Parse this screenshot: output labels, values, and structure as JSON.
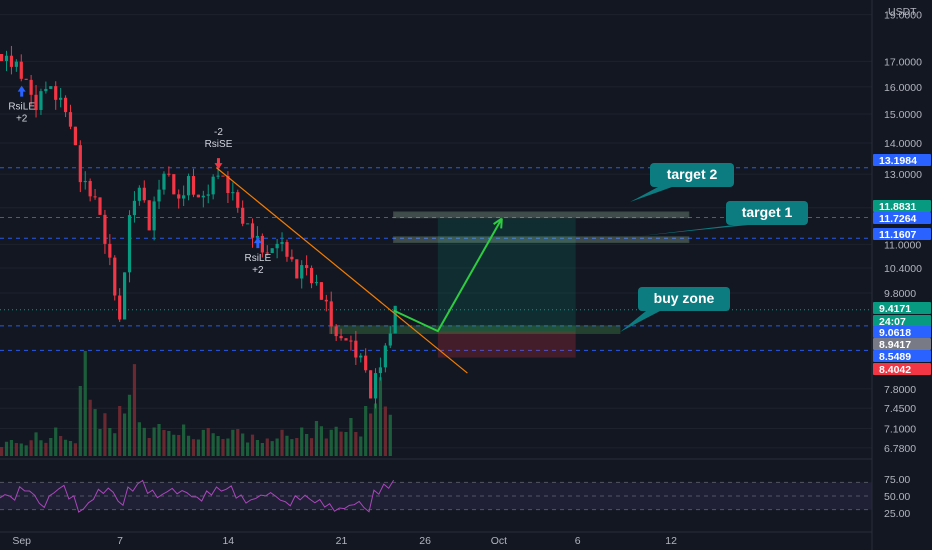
{
  "chart_data": {
    "type": "candlestick",
    "currency": "USDT",
    "price_axis": {
      "ticks": [
        "19.0000",
        "17.0000",
        "16.0000",
        "15.0000",
        "14.0000",
        "13.0000",
        "12.0000",
        "11.0000",
        "10.4000",
        "9.8000",
        "7.8000",
        "7.4500",
        "7.1000",
        "6.7800"
      ],
      "scale": "log",
      "range": [
        6.65,
        19.3
      ]
    },
    "time_axis": {
      "ticks": [
        "Sep",
        "7",
        "14",
        "21",
        "26",
        "Oct",
        "6",
        "12"
      ]
    },
    "price_tags": [
      {
        "value": "13.1984",
        "color": "#2962ff"
      },
      {
        "value": "11.8831",
        "color": "#089981"
      },
      {
        "value": "11.7264",
        "color": "#2962ff"
      },
      {
        "value": "11.1607",
        "color": "#2962ff"
      },
      {
        "value": "9.4171",
        "color": "#089981"
      },
      {
        "value": "24:07",
        "color": "#089981"
      },
      {
        "value": "9.0618",
        "color": "#2962ff"
      },
      {
        "value": "8.9417",
        "color": "#787b86"
      },
      {
        "value": "8.5489",
        "color": "#2962ff"
      },
      {
        "value": "8.4042",
        "color": "#f23645"
      }
    ],
    "horizontal_levels": [
      13.1984,
      11.7264,
      11.1607,
      9.0618,
      8.5489
    ],
    "last_price": 9.4171,
    "price_path": [
      {
        "t": 0,
        "p": 17.3
      },
      {
        "t": 3,
        "p": 16.8
      },
      {
        "t": 5,
        "p": 16.0
      },
      {
        "t": 7,
        "p": 15.4
      },
      {
        "t": 9,
        "p": 16.1
      },
      {
        "t": 11,
        "p": 15.6
      },
      {
        "t": 14,
        "p": 14.8
      },
      {
        "t": 16,
        "p": 12.9
      },
      {
        "t": 18,
        "p": 12.4
      },
      {
        "t": 20,
        "p": 11.8
      },
      {
        "t": 22,
        "p": 10.6
      },
      {
        "t": 24,
        "p": 9.1
      },
      {
        "t": 26,
        "p": 11.6
      },
      {
        "t": 28,
        "p": 12.8
      },
      {
        "t": 30,
        "p": 11.5
      },
      {
        "t": 32,
        "p": 12.6
      },
      {
        "t": 34,
        "p": 13.0
      },
      {
        "t": 36,
        "p": 12.2
      },
      {
        "t": 38,
        "p": 12.8
      },
      {
        "t": 40,
        "p": 12.1
      },
      {
        "t": 42,
        "p": 12.6
      },
      {
        "t": 44,
        "p": 13.1
      },
      {
        "t": 46,
        "p": 12.5
      },
      {
        "t": 48,
        "p": 12.0
      },
      {
        "t": 50,
        "p": 11.5
      },
      {
        "t": 52,
        "p": 11.1
      },
      {
        "t": 54,
        "p": 10.6
      },
      {
        "t": 56,
        "p": 11.2
      },
      {
        "t": 58,
        "p": 10.8
      },
      {
        "t": 60,
        "p": 10.2
      },
      {
        "t": 62,
        "p": 10.4
      },
      {
        "t": 64,
        "p": 10.0
      },
      {
        "t": 66,
        "p": 9.5
      },
      {
        "t": 68,
        "p": 8.7
      },
      {
        "t": 70,
        "p": 8.9
      },
      {
        "t": 72,
        "p": 8.5
      },
      {
        "t": 74,
        "p": 8.2
      },
      {
        "t": 75,
        "p": 7.5
      },
      {
        "t": 76,
        "p": 8.1
      },
      {
        "t": 78,
        "p": 8.6
      },
      {
        "t": 80,
        "p": 9.4
      }
    ],
    "rsi": {
      "ticks": [
        "75.00",
        "50.00",
        "25.00"
      ],
      "range": [
        0,
        100
      ],
      "overbought": 70,
      "oversold": 30,
      "values": [
        52,
        45,
        60,
        55,
        38,
        50,
        62,
        48,
        30,
        45,
        55,
        58,
        40,
        62,
        68,
        55,
        50,
        60,
        58,
        50,
        45,
        55,
        62,
        60,
        48,
        42,
        50,
        55,
        45,
        38,
        48,
        50,
        40,
        35,
        30,
        35,
        42,
        28,
        55,
        65,
        72
      ]
    },
    "volume": [
      6,
      8,
      5,
      9,
      7,
      12,
      10,
      6,
      40,
      25,
      18,
      14,
      20,
      35,
      15,
      12,
      16,
      10,
      12,
      9,
      11,
      14,
      8,
      10,
      12,
      9,
      8,
      7,
      10,
      9,
      12,
      11,
      14,
      10,
      13,
      16,
      12,
      20,
      30,
      22,
      18
    ],
    "trend_line": {
      "from": {
        "t": 44,
        "p": 13.2
      },
      "to": {
        "t": 95,
        "p": 8.1
      }
    },
    "buy_zone": {
      "top": 9.0618,
      "bottom": 8.9,
      "t_start": 67,
      "t_end": 126
    },
    "target_zones": [
      {
        "top": 11.8831,
        "bottom": 11.72,
        "t_start": 80,
        "t_end": 140
      },
      {
        "top": 11.2,
        "bottom": 11.05,
        "t_start": 80,
        "t_end": 140
      }
    ],
    "position": {
      "entry": 8.95,
      "target": 11.7,
      "stop": 8.4042,
      "t_start": 89,
      "t_end": 117
    },
    "projection": [
      {
        "t": 80,
        "p": 9.4
      },
      {
        "t": 89,
        "p": 8.95
      },
      {
        "t": 102,
        "p": 11.7
      }
    ],
    "signals": [
      {
        "label": "RsiLE",
        "sub": "+2",
        "t": 4,
        "p": 16.2,
        "direction": "up"
      },
      {
        "label": "RsiSE",
        "sub": "-2",
        "t": 44,
        "p": 13.6,
        "direction": "down"
      },
      {
        "label": "RsiLE",
        "sub": "+2",
        "t": 52,
        "p": 11.3,
        "direction": "up"
      }
    ],
    "callouts": [
      {
        "label": "target 2"
      },
      {
        "label": "target 1"
      },
      {
        "label": "buy zone"
      }
    ]
  }
}
